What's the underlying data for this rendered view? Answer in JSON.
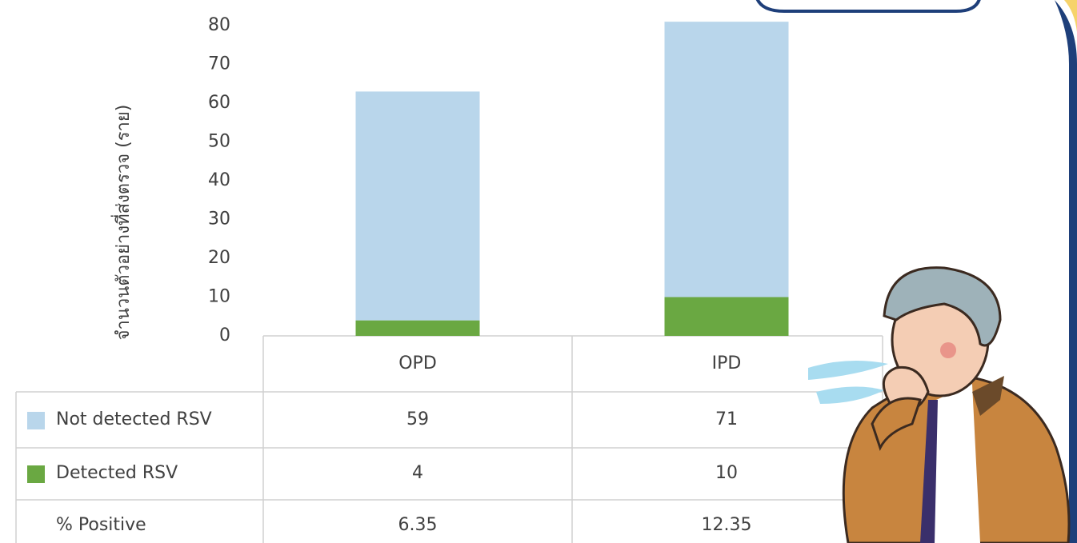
{
  "chart_data": {
    "type": "stacked_bar",
    "y_label": "จำนวนตัวอย่างที่ส่งตรวจ (ราย)",
    "categories": [
      "OPD",
      "IPD"
    ],
    "series": [
      {
        "name": "Not detected RSV",
        "color": "#b9d6eb",
        "values": [
          59,
          71
        ]
      },
      {
        "name": "Detected RSV",
        "color": "#6aa842",
        "values": [
          4,
          10
        ]
      }
    ],
    "percent_positive": {
      "name": "% Positive",
      "values": [
        6.35,
        12.35
      ]
    },
    "ylim": [
      0,
      80
    ],
    "yticks": [
      0,
      10,
      20,
      30,
      40,
      50,
      60,
      70,
      80
    ]
  }
}
